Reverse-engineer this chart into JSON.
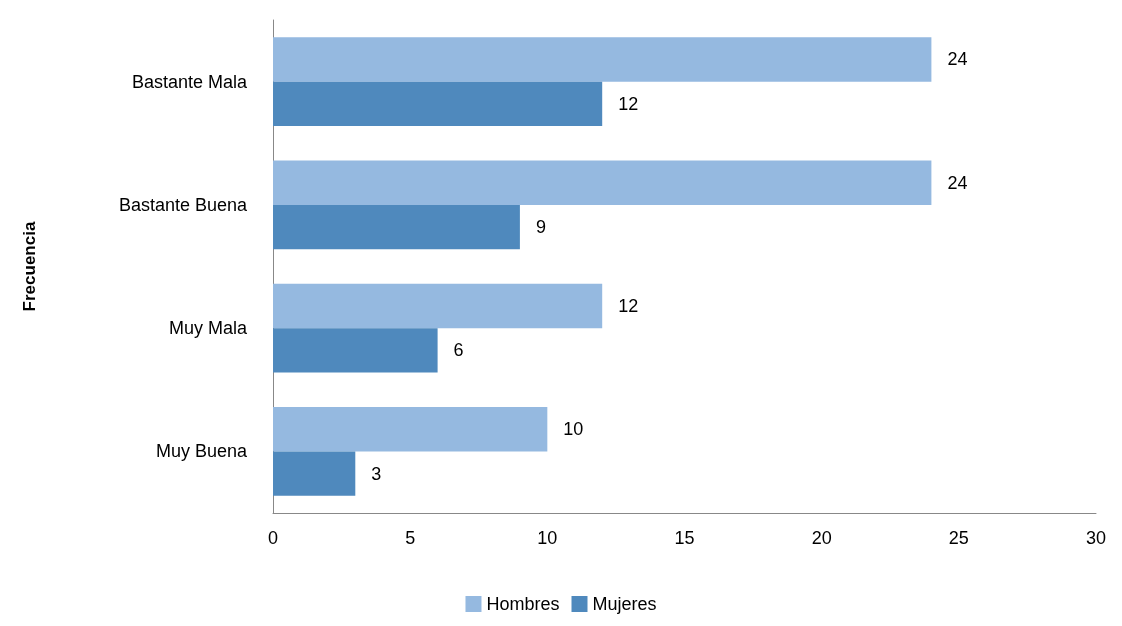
{
  "chart_data": {
    "type": "bar",
    "orientation": "horizontal",
    "ylabel": "Frecuencia",
    "categories": [
      "Bastante Mala",
      "Bastante Buena",
      "Muy Mala",
      "Muy Buena"
    ],
    "series": [
      {
        "name": "Hombres",
        "color": "#95b9e0",
        "values": [
          24,
          24,
          12,
          10
        ]
      },
      {
        "name": "Mujeres",
        "color": "#4f89bd",
        "values": [
          12,
          9,
          6,
          3
        ]
      }
    ],
    "xlim": [
      0,
      30
    ],
    "xticks": [
      0,
      5,
      10,
      15,
      20,
      25,
      30
    ],
    "grid": false,
    "legend": "bottom",
    "data_labels": true
  }
}
